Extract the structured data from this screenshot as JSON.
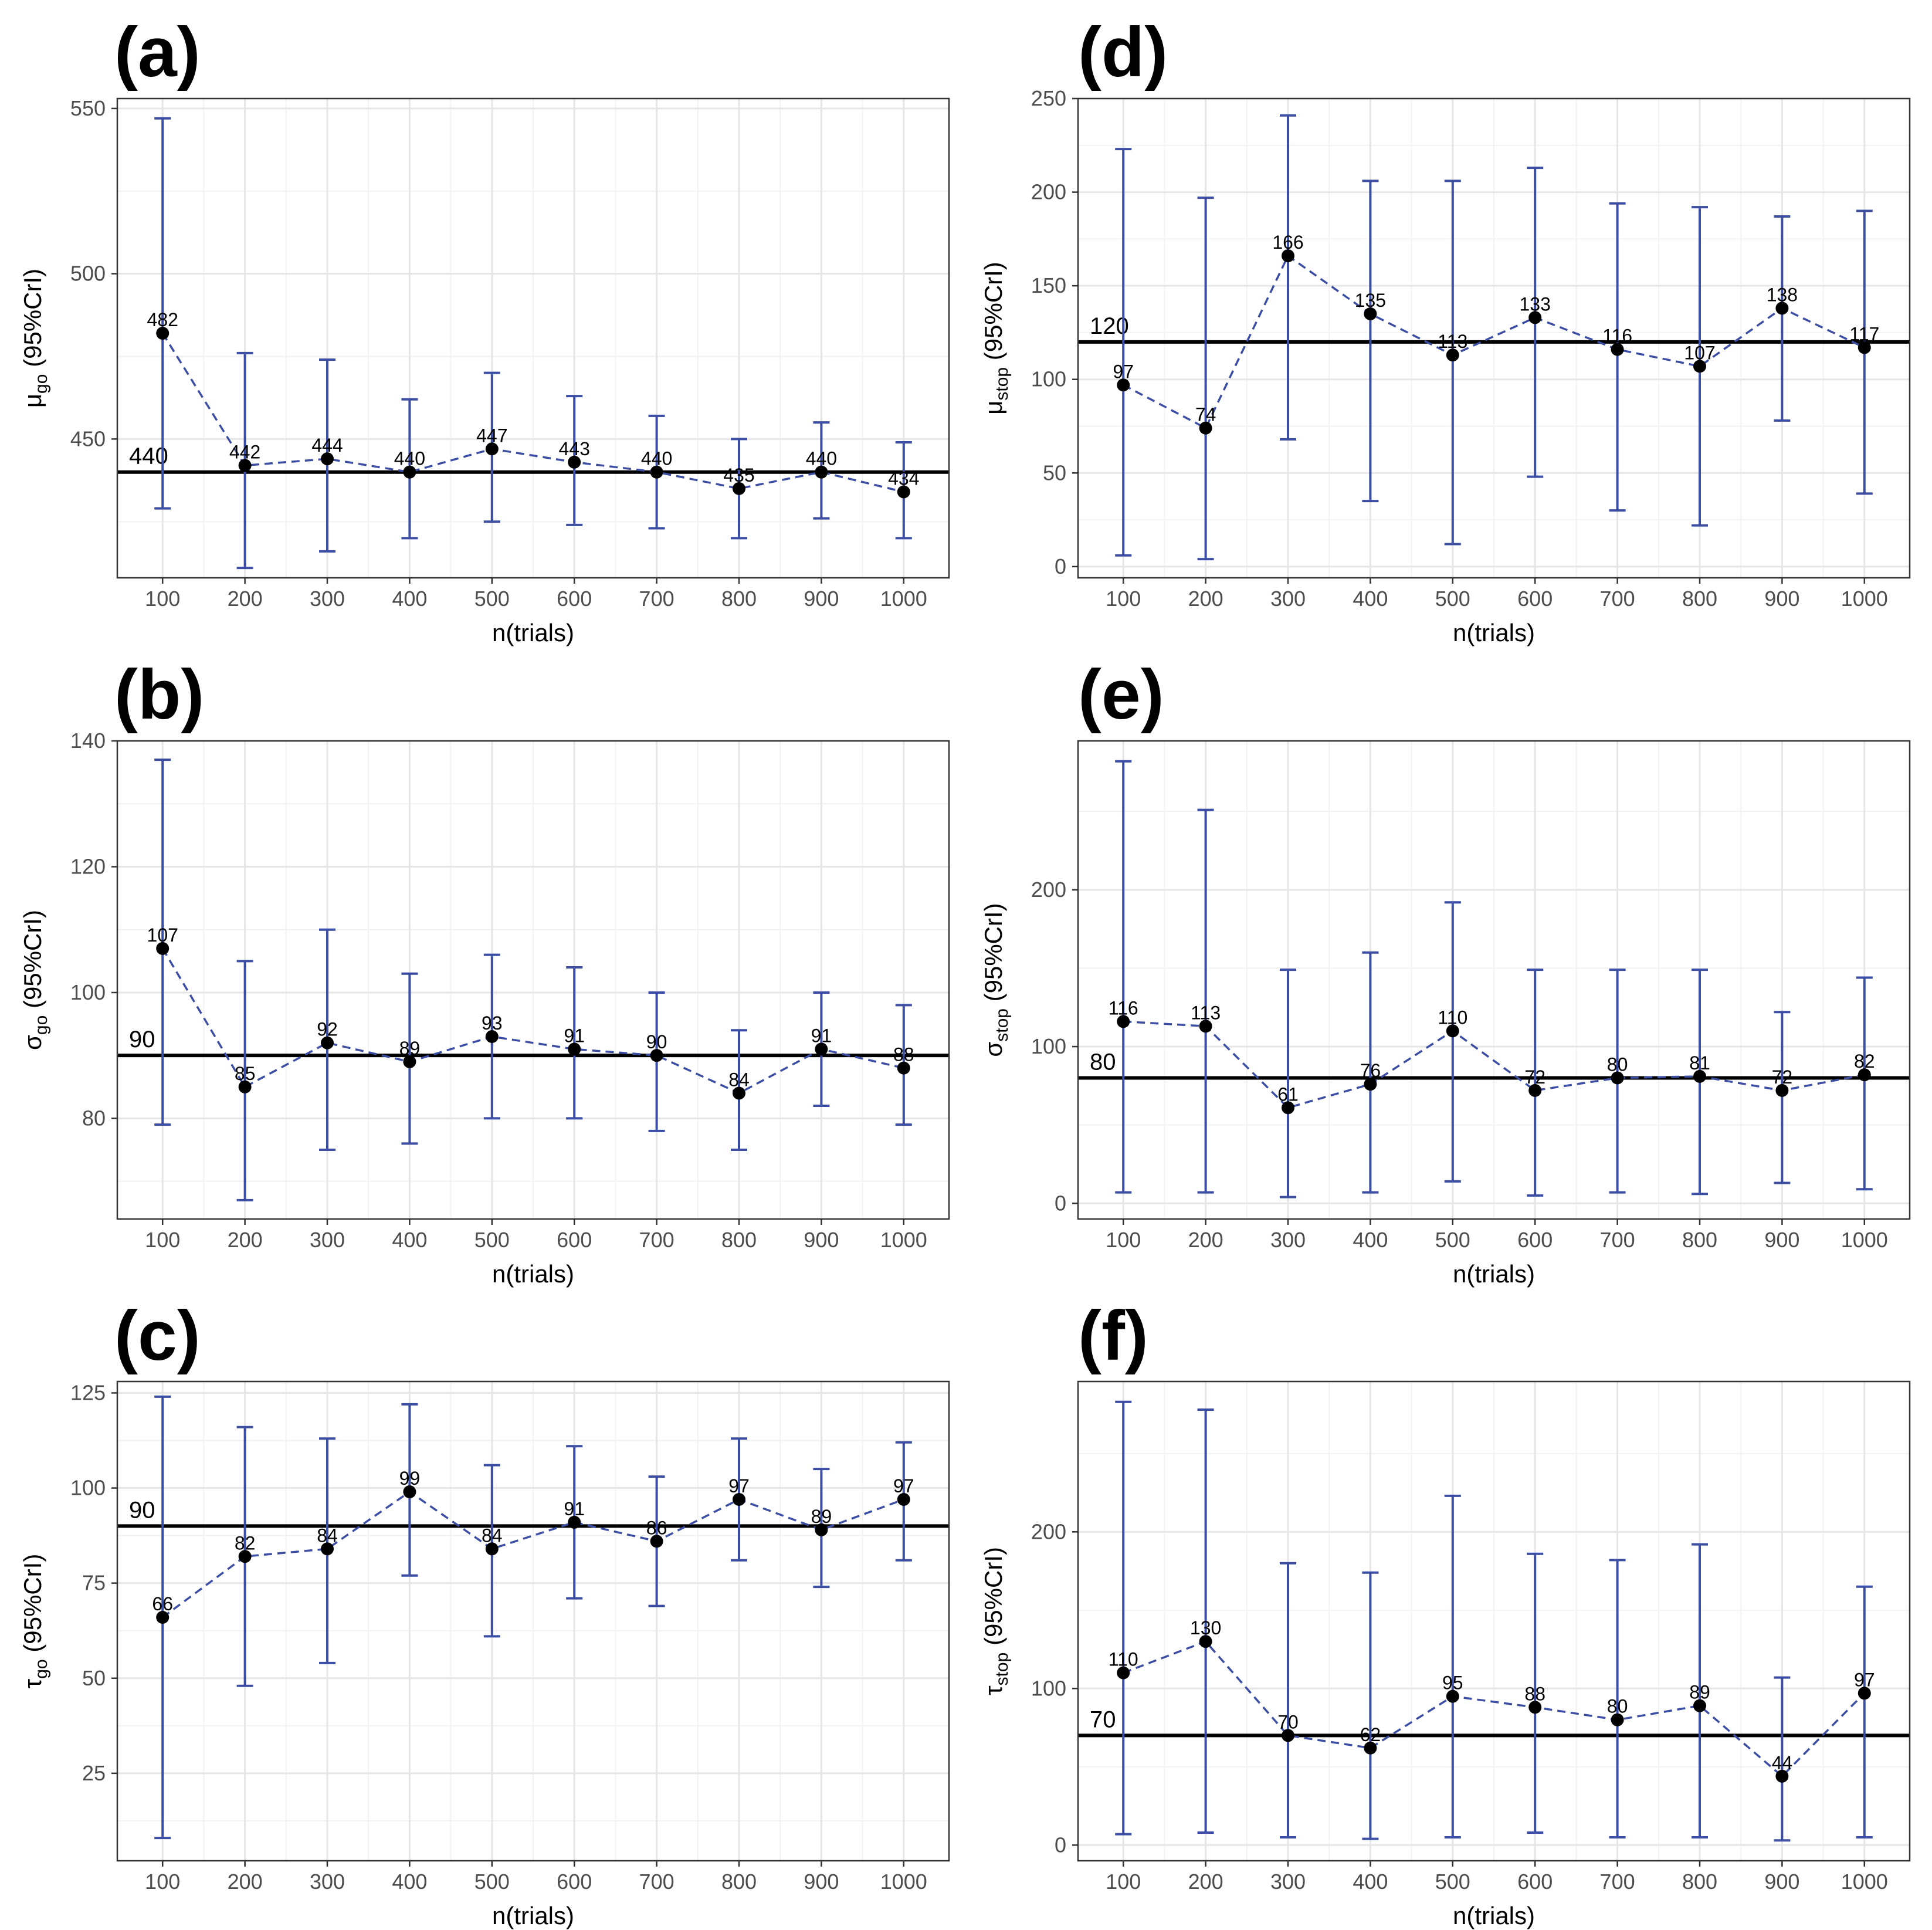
{
  "figure": {
    "xlabel": "n(trials)",
    "colors": {
      "errorbar": "#3c4ea3",
      "point": "#000000",
      "refline": "#000000",
      "grid_major": "#e6e6e6",
      "grid_minor": "#f2f2f2",
      "panel_border": "#333333"
    }
  },
  "chart_data": [
    {
      "id": "a",
      "panel_label": "(a)",
      "type": "scatter",
      "ylabel_sym": "μ",
      "ylabel_sub": "go",
      "ylabel_rest": " (95%CrI)",
      "x": [
        100,
        200,
        300,
        400,
        500,
        600,
        700,
        800,
        900,
        1000
      ],
      "values": [
        482,
        442,
        444,
        440,
        447,
        443,
        440,
        435,
        440,
        434
      ],
      "labels": [
        "482",
        "442",
        "444",
        "440",
        "447",
        "443",
        "440",
        "435",
        "440",
        "434"
      ],
      "lower": [
        429,
        411,
        416,
        420,
        425,
        424,
        423,
        420,
        426,
        420
      ],
      "upper": [
        547,
        476,
        474,
        462,
        470,
        463,
        457,
        450,
        455,
        449
      ],
      "reference": 440,
      "reference_label": "440",
      "ylim": [
        408,
        553
      ],
      "yticks": [
        450,
        500,
        550
      ],
      "xticks": [
        100,
        200,
        300,
        400,
        500,
        600,
        700,
        800,
        900,
        1000
      ]
    },
    {
      "id": "b",
      "panel_label": "(b)",
      "type": "scatter",
      "ylabel_sym": "σ",
      "ylabel_sub": "go",
      "ylabel_rest": " (95%CrI)",
      "x": [
        100,
        200,
        300,
        400,
        500,
        600,
        700,
        800,
        900,
        1000
      ],
      "values": [
        107,
        85,
        92,
        89,
        93,
        91,
        90,
        84,
        91,
        88
      ],
      "labels": [
        "107",
        "85",
        "92",
        "89",
        "93",
        "91",
        "90",
        "84",
        "91",
        "88"
      ],
      "lower": [
        79,
        67,
        75,
        76,
        80,
        80,
        78,
        75,
        82,
        79
      ],
      "upper": [
        137,
        105,
        110,
        103,
        106,
        104,
        100,
        94,
        100,
        98
      ],
      "reference": 90,
      "reference_label": "90",
      "ylim": [
        64,
        140
      ],
      "yticks": [
        80,
        100,
        120,
        140
      ],
      "xticks": [
        100,
        200,
        300,
        400,
        500,
        600,
        700,
        800,
        900,
        1000
      ]
    },
    {
      "id": "c",
      "panel_label": "(c)",
      "type": "scatter",
      "ylabel_sym": "τ",
      "ylabel_sub": "go",
      "ylabel_rest": " (95%CrI)",
      "x": [
        100,
        200,
        300,
        400,
        500,
        600,
        700,
        800,
        900,
        1000
      ],
      "values": [
        66,
        82,
        84,
        99,
        84,
        91,
        86,
        97,
        89,
        97
      ],
      "labels": [
        "66",
        "82",
        "84",
        "99",
        "84",
        "91",
        "86",
        "97",
        "89",
        "97"
      ],
      "lower": [
        8,
        48,
        54,
        77,
        61,
        71,
        69,
        81,
        74,
        81
      ],
      "upper": [
        124,
        116,
        113,
        122,
        106,
        111,
        103,
        113,
        105,
        112
      ],
      "reference": 90,
      "reference_label": "90",
      "ylim": [
        2,
        128
      ],
      "yticks": [
        25,
        50,
        75,
        100,
        125
      ],
      "xticks": [
        100,
        200,
        300,
        400,
        500,
        600,
        700,
        800,
        900,
        1000
      ]
    },
    {
      "id": "d",
      "panel_label": "(d)",
      "type": "scatter",
      "ylabel_sym": "μ",
      "ylabel_sub": "stop",
      "ylabel_rest": " (95%CrI)",
      "x": [
        100,
        200,
        300,
        400,
        500,
        600,
        700,
        800,
        900,
        1000
      ],
      "values": [
        97,
        74,
        166,
        135,
        113,
        133,
        116,
        107,
        138,
        117
      ],
      "labels": [
        "97",
        "74",
        "166",
        "135",
        "113",
        "133",
        "116",
        "107",
        "138",
        "117"
      ],
      "lower": [
        6,
        4,
        68,
        35,
        12,
        48,
        30,
        22,
        78,
        39
      ],
      "upper": [
        223,
        197,
        241,
        206,
        206,
        213,
        194,
        192,
        187,
        190
      ],
      "reference": 120,
      "reference_label": "120",
      "ylim": [
        -6,
        250
      ],
      "yticks": [
        0,
        50,
        100,
        150,
        200,
        250
      ],
      "xticks": [
        100,
        200,
        300,
        400,
        500,
        600,
        700,
        800,
        900,
        1000
      ]
    },
    {
      "id": "e",
      "panel_label": "(e)",
      "type": "scatter",
      "ylabel_sym": "σ",
      "ylabel_sub": "stop",
      "ylabel_rest": " (95%CrI)",
      "x": [
        100,
        200,
        300,
        400,
        500,
        600,
        700,
        800,
        900,
        1000
      ],
      "values": [
        116,
        113,
        61,
        76,
        110,
        72,
        80,
        81,
        72,
        82
      ],
      "labels": [
        "116",
        "113",
        "61",
        "76",
        "110",
        "72",
        "80",
        "81",
        "72",
        "82"
      ],
      "lower": [
        7,
        7,
        4,
        7,
        14,
        5,
        7,
        6,
        13,
        9
      ],
      "upper": [
        282,
        251,
        149,
        160,
        192,
        149,
        149,
        149,
        122,
        144
      ],
      "reference": 80,
      "reference_label": "80",
      "ylim": [
        -10,
        295
      ],
      "yticks": [
        0,
        100,
        200
      ],
      "xticks": [
        100,
        200,
        300,
        400,
        500,
        600,
        700,
        800,
        900,
        1000
      ]
    },
    {
      "id": "f",
      "panel_label": "(f)",
      "type": "scatter",
      "ylabel_sym": "τ",
      "ylabel_sub": "stop",
      "ylabel_rest": " (95%CrI)",
      "x": [
        100,
        200,
        300,
        400,
        500,
        600,
        700,
        800,
        900,
        1000
      ],
      "values": [
        110,
        130,
        70,
        62,
        95,
        88,
        80,
        89,
        44,
        97
      ],
      "labels": [
        "110",
        "130",
        "70",
        "62",
        "95",
        "88",
        "80",
        "89",
        "44",
        "97"
      ],
      "lower": [
        7,
        8,
        5,
        4,
        5,
        8,
        5,
        5,
        3,
        5
      ],
      "upper": [
        283,
        278,
        180,
        174,
        223,
        186,
        182,
        192,
        107,
        165
      ],
      "reference": 70,
      "reference_label": "70",
      "ylim": [
        -10,
        296
      ],
      "yticks": [
        0,
        100,
        200
      ],
      "xticks": [
        100,
        200,
        300,
        400,
        500,
        600,
        700,
        800,
        900,
        1000
      ]
    }
  ]
}
